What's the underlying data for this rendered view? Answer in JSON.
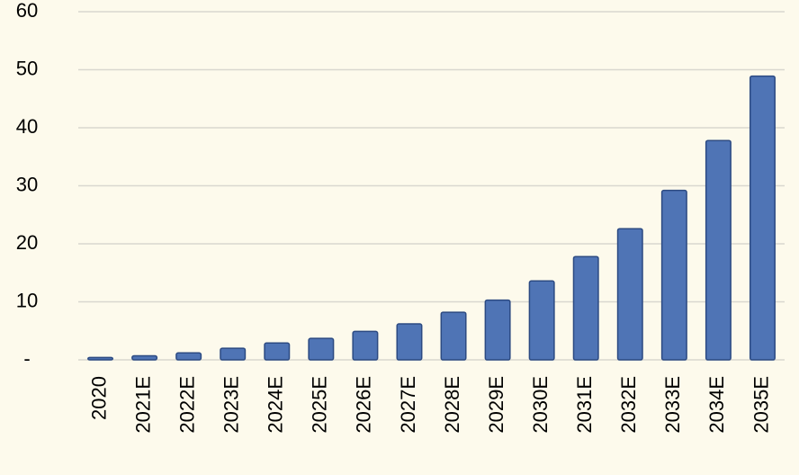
{
  "chart_data": {
    "type": "bar",
    "categories": [
      "2020",
      "2021E",
      "2022E",
      "2023E",
      "2024E",
      "2025E",
      "2026E",
      "2027E",
      "2028E",
      "2029E",
      "2030E",
      "2031E",
      "2032E",
      "2033E",
      "2034E",
      "2035E"
    ],
    "values": [
      0.4,
      0.7,
      1.2,
      2.0,
      2.9,
      3.7,
      4.9,
      6.2,
      8.2,
      10.3,
      13.6,
      17.8,
      22.6,
      29.2,
      37.8,
      48.9
    ],
    "color": "#4f74b5",
    "ylim": [
      0,
      60
    ],
    "yticks": [
      {
        "value": 0,
        "label": "-"
      },
      10,
      20,
      30,
      40,
      50,
      60
    ],
    "grid": true
  }
}
